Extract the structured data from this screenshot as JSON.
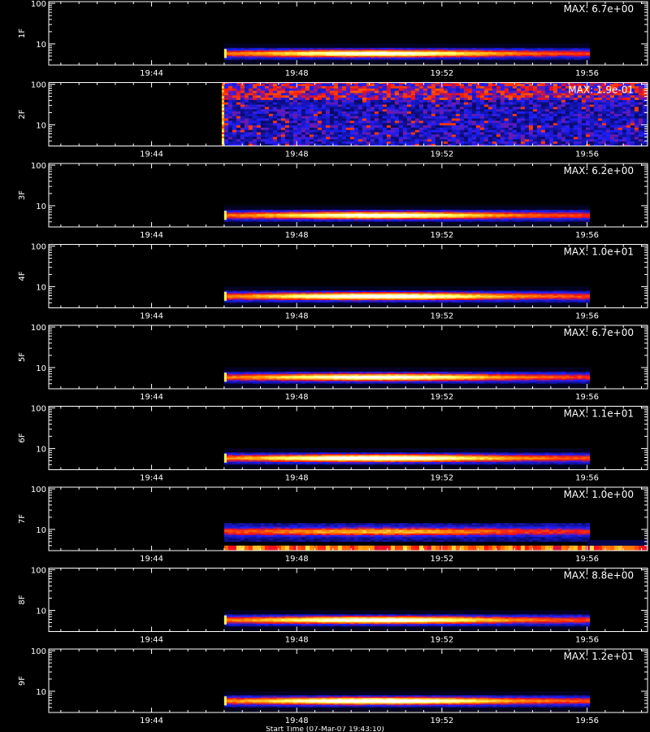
{
  "figure": {
    "background_color": "#000000",
    "axis_color": "#ffffff",
    "x_title": "Start Time (07-Mar-07 19:43:10)"
  },
  "chart_data": {
    "type": "heatmap",
    "description_of_axes": "time (x) vs frequency (y, log), one panel per channel",
    "xlim": [
      "19:41:10",
      "19:57:40"
    ],
    "xticks": [
      "19:44",
      "19:48",
      "19:52",
      "19:56"
    ],
    "ylim": [
      3,
      110
    ],
    "yscale": "log",
    "yticks": [
      10,
      100
    ],
    "colormap": [
      "#000000",
      "#0a0a6e",
      "#2020ff",
      "#ff1010",
      "#ff9000",
      "#ffff60",
      "#ffffff"
    ],
    "event_start": "19:46:00",
    "event_end": "19:56:00",
    "panels": [
      {
        "label": "1F",
        "max_label": "MAX: 6.7e+00",
        "max": 6.7
      },
      {
        "label": "2F",
        "max_label": "MAX: 1.9e-01",
        "max": 0.19
      },
      {
        "label": "3F",
        "max_label": "MAX: 6.2e+00",
        "max": 6.2
      },
      {
        "label": "4F",
        "max_label": "MAX: 1.0e+01",
        "max": 10.0
      },
      {
        "label": "5F",
        "max_label": "MAX: 6.7e+00",
        "max": 6.7
      },
      {
        "label": "6F",
        "max_label": "MAX: 1.1e+01",
        "max": 11.0
      },
      {
        "label": "7F",
        "max_label": "MAX: 1.0e+00",
        "max": 1.0
      },
      {
        "label": "8F",
        "max_label": "MAX: 8.8e+00",
        "max": 8.8
      },
      {
        "label": "9F",
        "max_label": "MAX: 1.2e+01",
        "max": 12.0
      }
    ]
  }
}
